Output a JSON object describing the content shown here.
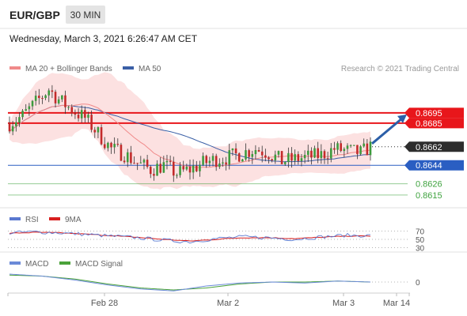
{
  "header": {
    "symbol": "EUR/GBP",
    "timeframe": "30 MIN",
    "datetime": "Wednesday, March 3, 2021 6:26:47 AM CET"
  },
  "colors": {
    "resistance": "#e8161b",
    "support_main": "#2a5ec2",
    "support_minor": "#3fa33f",
    "current": "#2d2d2d",
    "ma20": "#f08a8a",
    "band_fill": "#fbdcdc",
    "ma50": "#3a5fa6",
    "candle_up": "#3d9b3d",
    "candle_down": "#c32a2a",
    "rsi": "#5a78d0",
    "rsi_ma": "#d81f1f",
    "macd": "#6b8ad8",
    "macd_signal": "#4aa23a",
    "arrow": "#2c5fa8"
  },
  "chart_data": [
    {
      "type": "candlestick",
      "legend": [
        "MA 20 + Bollinger Bands",
        "MA 50"
      ],
      "credit": "Research © 2021 Trading Central",
      "ylim": [
        0.8608,
        0.8728
      ],
      "levels": [
        {
          "label": "0.8695",
          "value": 0.8695,
          "role": "resistance",
          "style": "badge"
        },
        {
          "label": "0.8685",
          "value": 0.8685,
          "role": "resistance",
          "style": "badge"
        },
        {
          "label": "0.8662",
          "value": 0.8662,
          "role": "current",
          "style": "badge"
        },
        {
          "label": "0.8644",
          "value": 0.8644,
          "role": "support_main",
          "style": "badge"
        },
        {
          "label": "0.8626",
          "value": 0.8626,
          "role": "support_minor",
          "style": "text"
        },
        {
          "label": "0.8615",
          "value": 0.8615,
          "role": "support_minor",
          "style": "text"
        }
      ],
      "price_path": [
        [
          0,
          0.8685
        ],
        [
          4,
          0.8692
        ],
        [
          8,
          0.8705
        ],
        [
          12,
          0.8718
        ],
        [
          15,
          0.8708
        ],
        [
          19,
          0.8698
        ],
        [
          23,
          0.869
        ],
        [
          27,
          0.8675
        ],
        [
          31,
          0.866
        ],
        [
          35,
          0.8655
        ],
        [
          39,
          0.8646
        ],
        [
          43,
          0.864
        ],
        [
          47,
          0.8644
        ],
        [
          51,
          0.8636
        ],
        [
          55,
          0.864
        ],
        [
          59,
          0.8646
        ],
        [
          63,
          0.865
        ],
        [
          67,
          0.8652
        ],
        [
          71,
          0.8656
        ],
        [
          75,
          0.866
        ],
        [
          79,
          0.8656
        ],
        [
          83,
          0.8648
        ],
        [
          87,
          0.865
        ],
        [
          91,
          0.8652
        ],
        [
          95,
          0.8654
        ],
        [
          99,
          0.866
        ],
        [
          103,
          0.8658
        ],
        [
          107,
          0.8656
        ],
        [
          110,
          0.8662
        ]
      ],
      "forecast": {
        "from": 0.8662,
        "to": 0.8695
      },
      "x_ticks": [
        "Feb 28",
        "Mar 2",
        "Mar 3",
        "Mar 14"
      ]
    },
    {
      "type": "line",
      "name": "RSI",
      "legend": [
        "RSI",
        "9MA"
      ],
      "ylim": [
        25,
        75
      ],
      "levels": [
        70,
        50,
        30
      ],
      "rsi_path": [
        [
          0,
          66
        ],
        [
          8,
          68
        ],
        [
          15,
          66
        ],
        [
          23,
          62
        ],
        [
          31,
          58
        ],
        [
          39,
          54
        ],
        [
          47,
          48
        ],
        [
          55,
          44
        ],
        [
          63,
          52
        ],
        [
          71,
          56
        ],
        [
          79,
          54
        ],
        [
          87,
          50
        ],
        [
          95,
          56
        ],
        [
          103,
          60
        ],
        [
          110,
          59
        ]
      ],
      "ma_path": [
        [
          0,
          65
        ],
        [
          8,
          67
        ],
        [
          15,
          66
        ],
        [
          23,
          63
        ],
        [
          31,
          59
        ],
        [
          39,
          55
        ],
        [
          47,
          50
        ],
        [
          55,
          46
        ],
        [
          63,
          50
        ],
        [
          71,
          54
        ],
        [
          79,
          54
        ],
        [
          87,
          52
        ],
        [
          95,
          55
        ],
        [
          103,
          58
        ],
        [
          110,
          58
        ]
      ]
    },
    {
      "type": "line",
      "name": "MACD",
      "legend": [
        "MACD",
        "MACD Signal"
      ],
      "ylim": [
        -0.0012,
        0.0012
      ],
      "levels": [
        0
      ],
      "level_labels": [
        "0"
      ],
      "macd_path": [
        [
          0,
          0.0008
        ],
        [
          10,
          0.0006
        ],
        [
          20,
          0.0002
        ],
        [
          30,
          -0.0003
        ],
        [
          40,
          -0.0007
        ],
        [
          50,
          -0.0009
        ],
        [
          60,
          -0.0004
        ],
        [
          70,
          -0.0001
        ],
        [
          80,
          0.0
        ],
        [
          90,
          -0.0001
        ],
        [
          100,
          0.0001
        ],
        [
          110,
          0.0
        ]
      ],
      "signal_path": [
        [
          0,
          0.0007
        ],
        [
          10,
          0.0006
        ],
        [
          20,
          0.0003
        ],
        [
          30,
          -0.0002
        ],
        [
          40,
          -0.0006
        ],
        [
          50,
          -0.0008
        ],
        [
          60,
          -0.0006
        ],
        [
          70,
          -0.0002
        ],
        [
          80,
          0.0
        ],
        [
          90,
          0.0
        ],
        [
          100,
          0.0001
        ],
        [
          110,
          0.0
        ]
      ]
    }
  ]
}
